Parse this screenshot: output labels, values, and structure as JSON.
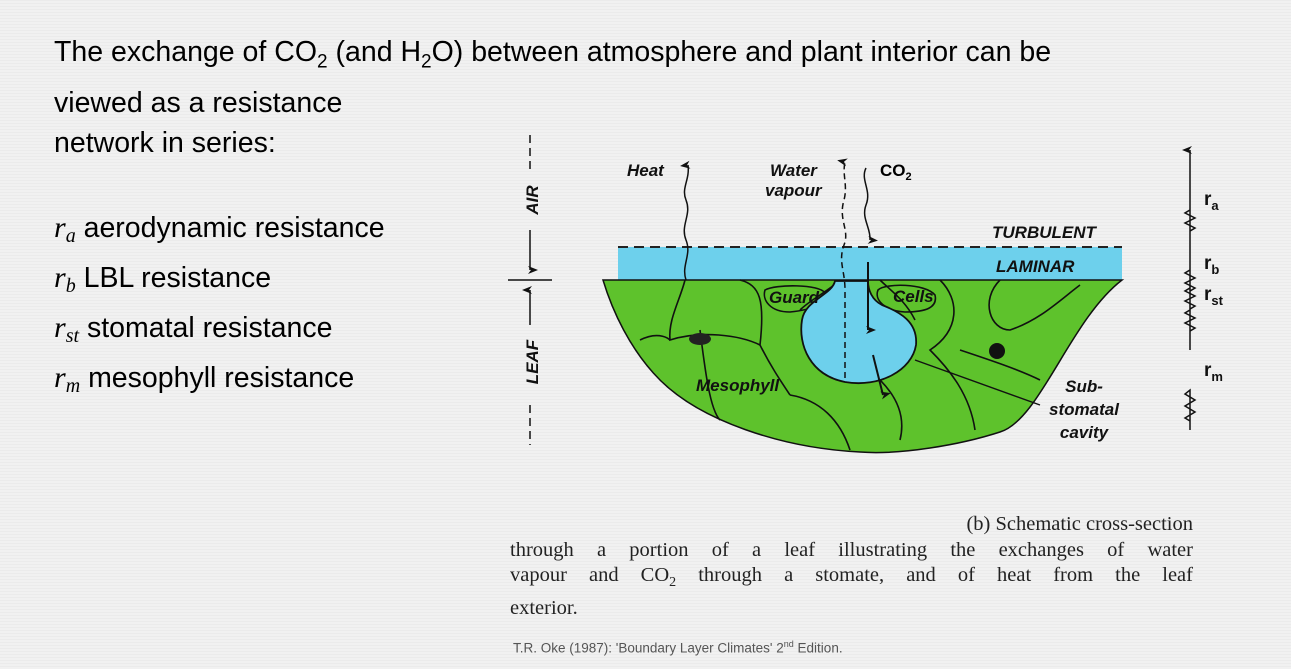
{
  "title": {
    "line1_pre": "The exchange of CO",
    "line1_sub1": "2",
    "line1_mid": " (and H",
    "line1_sub2": "2",
    "line1_post": "O) between atmosphere and plant interior can be",
    "line2": "viewed as a resistance",
    "line3": "network in series:"
  },
  "resistances": [
    {
      "symbol": "r",
      "sub": "a",
      "label": "aerodynamic resistance"
    },
    {
      "symbol": "r",
      "sub": "b",
      "label": "LBL resistance"
    },
    {
      "symbol": "r",
      "sub": "st",
      "label": "stomatal resistance"
    },
    {
      "symbol": "r",
      "sub": "m",
      "label": "mesophyll resistance"
    }
  ],
  "diagram": {
    "air": "AIR",
    "leaf": "LEAF",
    "heat": "Heat",
    "water1": "Water",
    "water2": "vapour",
    "co2": "CO",
    "co2_sub": "2",
    "turbulent": "TURBULENT",
    "laminar": "LAMINAR",
    "guard": "Guard",
    "cells": "Cells",
    "mesophyll": "Mesophyll",
    "sub1": "Sub-",
    "sub2": "stomatal",
    "sub3": "cavity",
    "r_labels": [
      {
        "r": "r",
        "sub": "a"
      },
      {
        "r": "r",
        "sub": "b"
      },
      {
        "r": "r",
        "sub": "st"
      },
      {
        "r": "r",
        "sub": "m"
      }
    ],
    "colors": {
      "laminar": "#6dd0ec",
      "leaf": "#5ec22c",
      "outline": "#111111"
    }
  },
  "caption": {
    "line1": "(b) Schematic cross-section",
    "line2": "through a portion of a leaf illustrating the exchanges of water",
    "line3_pre": "vapour and CO",
    "line3_sub": "2",
    "line3_post": " through a stomate, and of heat from the leaf",
    "line4": "exterior."
  },
  "citation": {
    "pre": "T.R. Oke (1987): 'Boundary Layer Climates' 2",
    "sup": "nd",
    "post": " Edition."
  }
}
